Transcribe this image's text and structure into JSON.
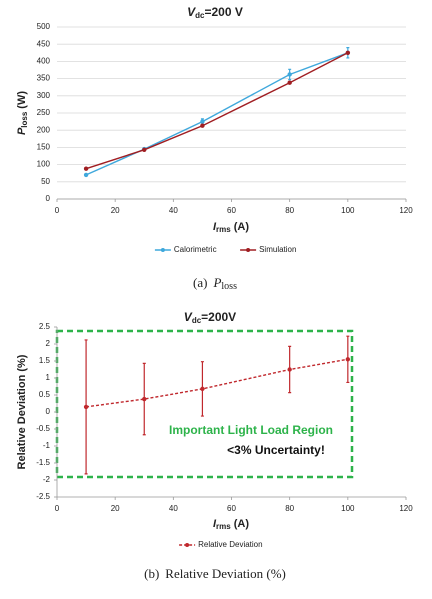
{
  "chart_data": [
    {
      "type": "line",
      "title": {
        "main": "V",
        "sub": "dc",
        "rest": "=200 V"
      },
      "ylabel": {
        "main": "P",
        "sub": "loss",
        "unit": "(W)"
      },
      "xlabel": {
        "main": "I",
        "sub": "rms",
        "unit": "(A)"
      },
      "x": [
        10,
        30,
        50,
        80,
        100
      ],
      "series": [
        {
          "name": "Calorimetric",
          "color": "#3fa8dc",
          "values": [
            70,
            145,
            225,
            362,
            425
          ],
          "errors": [
            3,
            3,
            8,
            15,
            15
          ]
        },
        {
          "name": "Simulation",
          "color": "#a01e22",
          "values": [
            88,
            143,
            213,
            338,
            425
          ]
        }
      ],
      "xlim": [
        0,
        120
      ],
      "xticks": [
        0,
        20,
        40,
        60,
        80,
        100,
        120
      ],
      "ylim": [
        0,
        500
      ],
      "yticks": [
        0,
        50,
        100,
        150,
        200,
        250,
        300,
        350,
        400,
        450,
        500
      ],
      "grid": true,
      "legend": "bottom"
    },
    {
      "type": "line",
      "title": {
        "main": "V",
        "sub": "dc",
        "rest": "=200V"
      },
      "ylabel": {
        "text": "Relative Deviation (%)"
      },
      "xlabel": {
        "main": "I",
        "sub": "rms",
        "unit": "(A)"
      },
      "x": [
        10,
        30,
        50,
        80,
        100
      ],
      "series": [
        {
          "name": "Relative Deviation",
          "color": "#c0282d",
          "dashed": true,
          "values": [
            0.15,
            0.38,
            0.68,
            1.25,
            1.55
          ],
          "errors": [
            1.97,
            1.05,
            0.8,
            0.68,
            0.68
          ]
        }
      ],
      "annotations": [
        "Important Light Load Region",
        "<3% Uncertainty!"
      ],
      "xlim": [
        0,
        120
      ],
      "xticks": [
        0,
        20,
        40,
        60,
        80,
        100,
        120
      ],
      "ylim": [
        -2.5,
        2.5
      ],
      "yticks": [
        -2.5,
        -2,
        -1.5,
        -1,
        -0.5,
        0,
        0.5,
        1,
        1.5,
        2,
        2.5
      ],
      "grid": false,
      "legend": "bottom"
    }
  ],
  "captions": [
    {
      "prefix": "(a)",
      "main": "P",
      "sub": "loss"
    },
    {
      "prefix": "(b)",
      "text": "Relative Deviation (%)"
    }
  ]
}
